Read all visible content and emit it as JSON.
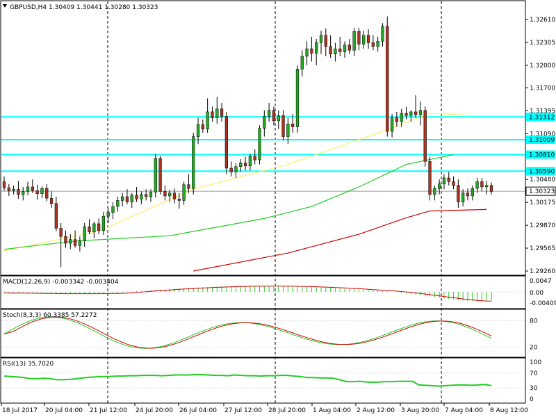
{
  "chart_data": {
    "type": "candlestick",
    "header": {
      "symbol": "GBPUSD,H4",
      "ohlc": [
        "1.30409",
        "1.30441",
        "1.30280",
        "1.30323"
      ]
    },
    "x_tick_labels": [
      "18 Jul 2017",
      "20 Jul 04:00",
      "21 Jul 12:00",
      "24 Jul 20:00",
      "26 Jul 04:00",
      "27 Jul 12:00",
      "28 Jul 20:00",
      "1 Aug 04:00",
      "2 Aug 12:00",
      "3 Aug 20:00",
      "7 Aug 04:00",
      "8 Aug 12:00"
    ],
    "y_ticks": [
      "1.32610",
      "1.32305",
      "1.32000",
      "1.31700",
      "1.31395",
      "1.31090",
      "1.30480",
      "1.30175",
      "1.29870",
      "1.29565",
      "1.29260"
    ],
    "ylim": [
      1.2926,
      1.3261
    ],
    "current_price": "1.30323",
    "horizontal_lines": [
      {
        "label": "1.31312",
        "value": 1.31312
      },
      {
        "label": "1.31009",
        "value": 1.31009
      },
      {
        "label": "1.30810",
        "value": 1.3081
      },
      {
        "label": "1.30590",
        "value": 1.3059
      }
    ],
    "candles": [
      {
        "o": 1.3045,
        "h": 1.3052,
        "l": 1.3033,
        "c": 1.3037
      },
      {
        "o": 1.3037,
        "h": 1.3042,
        "l": 1.3026,
        "c": 1.3033
      },
      {
        "o": 1.3033,
        "h": 1.304,
        "l": 1.3028,
        "c": 1.3035
      },
      {
        "o": 1.3035,
        "h": 1.3046,
        "l": 1.3022,
        "c": 1.3028
      },
      {
        "o": 1.3028,
        "h": 1.3038,
        "l": 1.302,
        "c": 1.3032
      },
      {
        "o": 1.3032,
        "h": 1.3045,
        "l": 1.3027,
        "c": 1.3038
      },
      {
        "o": 1.3038,
        "h": 1.3048,
        "l": 1.303,
        "c": 1.3033
      },
      {
        "o": 1.3033,
        "h": 1.3041,
        "l": 1.3021,
        "c": 1.3029
      },
      {
        "o": 1.3029,
        "h": 1.3039,
        "l": 1.3023,
        "c": 1.3036
      },
      {
        "o": 1.3036,
        "h": 1.3042,
        "l": 1.3019,
        "c": 1.3023
      },
      {
        "o": 1.3023,
        "h": 1.3032,
        "l": 1.301,
        "c": 1.3016
      },
      {
        "o": 1.3016,
        "h": 1.3025,
        "l": 1.2979,
        "c": 1.2983
      },
      {
        "o": 1.2983,
        "h": 1.299,
        "l": 1.2931,
        "c": 1.2972
      },
      {
        "o": 1.2972,
        "h": 1.298,
        "l": 1.2957,
        "c": 1.2963
      },
      {
        "o": 1.2963,
        "h": 1.2975,
        "l": 1.2955,
        "c": 1.2968
      },
      {
        "o": 1.2968,
        "h": 1.298,
        "l": 1.2957,
        "c": 1.296
      },
      {
        "o": 1.296,
        "h": 1.2972,
        "l": 1.2952,
        "c": 1.2966
      },
      {
        "o": 1.2966,
        "h": 1.299,
        "l": 1.2958,
        "c": 1.2985
      },
      {
        "o": 1.2985,
        "h": 1.2995,
        "l": 1.2975,
        "c": 1.2978
      },
      {
        "o": 1.2978,
        "h": 1.2992,
        "l": 1.297,
        "c": 1.2989
      },
      {
        "o": 1.2989,
        "h": 1.2996,
        "l": 1.2975,
        "c": 1.298
      },
      {
        "o": 1.298,
        "h": 1.3005,
        "l": 1.2974,
        "c": 1.2999
      },
      {
        "o": 1.2999,
        "h": 1.301,
        "l": 1.299,
        "c": 1.3004
      },
      {
        "o": 1.3004,
        "h": 1.3018,
        "l": 1.2995,
        "c": 1.3012
      },
      {
        "o": 1.3012,
        "h": 1.3025,
        "l": 1.3005,
        "c": 1.302
      },
      {
        "o": 1.302,
        "h": 1.303,
        "l": 1.3012,
        "c": 1.3025
      },
      {
        "o": 1.3025,
        "h": 1.3035,
        "l": 1.3015,
        "c": 1.3018
      },
      {
        "o": 1.3018,
        "h": 1.303,
        "l": 1.301,
        "c": 1.3027
      },
      {
        "o": 1.3027,
        "h": 1.3038,
        "l": 1.3018,
        "c": 1.3022
      },
      {
        "o": 1.3022,
        "h": 1.3032,
        "l": 1.3015,
        "c": 1.3028
      },
      {
        "o": 1.3028,
        "h": 1.3035,
        "l": 1.302,
        "c": 1.3025
      },
      {
        "o": 1.3025,
        "h": 1.3035,
        "l": 1.3018,
        "c": 1.3031
      },
      {
        "o": 1.3031,
        "h": 1.3082,
        "l": 1.3024,
        "c": 1.3076
      },
      {
        "o": 1.3076,
        "h": 1.3079,
        "l": 1.3028,
        "c": 1.3032
      },
      {
        "o": 1.3032,
        "h": 1.304,
        "l": 1.302,
        "c": 1.3026
      },
      {
        "o": 1.3026,
        "h": 1.3034,
        "l": 1.3018,
        "c": 1.303
      },
      {
        "o": 1.303,
        "h": 1.3036,
        "l": 1.3016,
        "c": 1.3022
      },
      {
        "o": 1.3022,
        "h": 1.303,
        "l": 1.3009,
        "c": 1.302
      },
      {
        "o": 1.302,
        "h": 1.3045,
        "l": 1.3014,
        "c": 1.3041
      },
      {
        "o": 1.3041,
        "h": 1.3055,
        "l": 1.303,
        "c": 1.3036
      },
      {
        "o": 1.3036,
        "h": 1.311,
        "l": 1.3028,
        "c": 1.3105
      },
      {
        "o": 1.3105,
        "h": 1.313,
        "l": 1.3095,
        "c": 1.3121
      },
      {
        "o": 1.3121,
        "h": 1.3128,
        "l": 1.311,
        "c": 1.3115
      },
      {
        "o": 1.3115,
        "h": 1.3156,
        "l": 1.311,
        "c": 1.3138
      },
      {
        "o": 1.3138,
        "h": 1.3145,
        "l": 1.3125,
        "c": 1.313
      },
      {
        "o": 1.313,
        "h": 1.3158,
        "l": 1.3122,
        "c": 1.3142
      },
      {
        "o": 1.3142,
        "h": 1.315,
        "l": 1.3125,
        "c": 1.3132
      },
      {
        "o": 1.3132,
        "h": 1.3138,
        "l": 1.3055,
        "c": 1.3063
      },
      {
        "o": 1.3063,
        "h": 1.3072,
        "l": 1.3052,
        "c": 1.3058
      },
      {
        "o": 1.3058,
        "h": 1.307,
        "l": 1.305,
        "c": 1.3065
      },
      {
        "o": 1.3065,
        "h": 1.3075,
        "l": 1.3058,
        "c": 1.307
      },
      {
        "o": 1.307,
        "h": 1.3078,
        "l": 1.306,
        "c": 1.3066
      },
      {
        "o": 1.3066,
        "h": 1.3082,
        "l": 1.306,
        "c": 1.3079
      },
      {
        "o": 1.3079,
        "h": 1.3088,
        "l": 1.3068,
        "c": 1.3074
      },
      {
        "o": 1.3074,
        "h": 1.312,
        "l": 1.3068,
        "c": 1.3116
      },
      {
        "o": 1.3116,
        "h": 1.314,
        "l": 1.3105,
        "c": 1.3132
      },
      {
        "o": 1.3132,
        "h": 1.315,
        "l": 1.3125,
        "c": 1.314
      },
      {
        "o": 1.314,
        "h": 1.3145,
        "l": 1.312,
        "c": 1.3126
      },
      {
        "o": 1.3126,
        "h": 1.314,
        "l": 1.3115,
        "c": 1.3133
      },
      {
        "o": 1.3133,
        "h": 1.314,
        "l": 1.31,
        "c": 1.3105
      },
      {
        "o": 1.3105,
        "h": 1.313,
        "l": 1.3095,
        "c": 1.3122
      },
      {
        "o": 1.3122,
        "h": 1.3135,
        "l": 1.311,
        "c": 1.3118
      },
      {
        "o": 1.3118,
        "h": 1.32,
        "l": 1.311,
        "c": 1.3195
      },
      {
        "o": 1.3195,
        "h": 1.322,
        "l": 1.3185,
        "c": 1.3212
      },
      {
        "o": 1.3212,
        "h": 1.3232,
        "l": 1.32,
        "c": 1.3222
      },
      {
        "o": 1.3222,
        "h": 1.3238,
        "l": 1.3205,
        "c": 1.3216
      },
      {
        "o": 1.3216,
        "h": 1.3235,
        "l": 1.32,
        "c": 1.323
      },
      {
        "o": 1.323,
        "h": 1.3246,
        "l": 1.3215,
        "c": 1.324
      },
      {
        "o": 1.324,
        "h": 1.3249,
        "l": 1.3212,
        "c": 1.3225
      },
      {
        "o": 1.3225,
        "h": 1.324,
        "l": 1.321,
        "c": 1.3215
      },
      {
        "o": 1.3215,
        "h": 1.323,
        "l": 1.3205,
        "c": 1.3222
      },
      {
        "o": 1.3222,
        "h": 1.3238,
        "l": 1.3212,
        "c": 1.3218
      },
      {
        "o": 1.3218,
        "h": 1.3232,
        "l": 1.321,
        "c": 1.3227
      },
      {
        "o": 1.3227,
        "h": 1.3235,
        "l": 1.3215,
        "c": 1.322
      },
      {
        "o": 1.322,
        "h": 1.325,
        "l": 1.3212,
        "c": 1.3245
      },
      {
        "o": 1.3245,
        "h": 1.325,
        "l": 1.322,
        "c": 1.3228
      },
      {
        "o": 1.3228,
        "h": 1.3246,
        "l": 1.3222,
        "c": 1.324
      },
      {
        "o": 1.324,
        "h": 1.3248,
        "l": 1.3222,
        "c": 1.323
      },
      {
        "o": 1.323,
        "h": 1.324,
        "l": 1.322,
        "c": 1.3225
      },
      {
        "o": 1.3225,
        "h": 1.3238,
        "l": 1.3218,
        "c": 1.3232
      },
      {
        "o": 1.3232,
        "h": 1.3256,
        "l": 1.3225,
        "c": 1.3252
      },
      {
        "o": 1.3252,
        "h": 1.3265,
        "l": 1.3105,
        "c": 1.3112
      },
      {
        "o": 1.3112,
        "h": 1.3135,
        "l": 1.3104,
        "c": 1.313
      },
      {
        "o": 1.313,
        "h": 1.3138,
        "l": 1.3118,
        "c": 1.3125
      },
      {
        "o": 1.3125,
        "h": 1.3142,
        "l": 1.3118,
        "c": 1.3136
      },
      {
        "o": 1.3136,
        "h": 1.3145,
        "l": 1.3128,
        "c": 1.3133
      },
      {
        "o": 1.3133,
        "h": 1.314,
        "l": 1.3125,
        "c": 1.3138
      },
      {
        "o": 1.3138,
        "h": 1.316,
        "l": 1.313,
        "c": 1.3134
      },
      {
        "o": 1.3134,
        "h": 1.3152,
        "l": 1.312,
        "c": 1.314
      },
      {
        "o": 1.314,
        "h": 1.3145,
        "l": 1.3065,
        "c": 1.3072
      },
      {
        "o": 1.3072,
        "h": 1.3078,
        "l": 1.302,
        "c": 1.3028
      },
      {
        "o": 1.3028,
        "h": 1.304,
        "l": 1.302,
        "c": 1.3036
      },
      {
        "o": 1.3036,
        "h": 1.3048,
        "l": 1.3028,
        "c": 1.3042
      },
      {
        "o": 1.3042,
        "h": 1.3055,
        "l": 1.3035,
        "c": 1.305
      },
      {
        "o": 1.305,
        "h": 1.3058,
        "l": 1.304,
        "c": 1.3045
      },
      {
        "o": 1.3045,
        "h": 1.3052,
        "l": 1.3035,
        "c": 1.304
      },
      {
        "o": 1.304,
        "h": 1.3048,
        "l": 1.301,
        "c": 1.3018
      },
      {
        "o": 1.3018,
        "h": 1.3035,
        "l": 1.3012,
        "c": 1.303
      },
      {
        "o": 1.303,
        "h": 1.3036,
        "l": 1.302,
        "c": 1.3026
      },
      {
        "o": 1.3026,
        "h": 1.304,
        "l": 1.302,
        "c": 1.3036
      },
      {
        "o": 1.3036,
        "h": 1.305,
        "l": 1.303,
        "c": 1.3045
      },
      {
        "o": 1.3045,
        "h": 1.305,
        "l": 1.3032,
        "c": 1.3038
      },
      {
        "o": 1.3038,
        "h": 1.3046,
        "l": 1.3028,
        "c": 1.304
      },
      {
        "o": 1.304,
        "h": 1.3044,
        "l": 1.3028,
        "c": 1.3032
      }
    ],
    "moving_averages": [
      {
        "color": "#ffee66",
        "points": [
          [
            0,
            1.2953
          ],
          [
            20,
            1.2979
          ],
          [
            40,
            1.3035
          ],
          [
            60,
            1.3068
          ],
          [
            80,
            1.3112
          ],
          [
            90,
            1.3136
          ],
          [
            100,
            1.3133
          ]
        ]
      },
      {
        "color": "#22cc22",
        "points": [
          [
            0,
            1.2955
          ],
          [
            15,
            1.2966
          ],
          [
            35,
            1.2973
          ],
          [
            55,
            1.2996
          ],
          [
            65,
            1.3012
          ],
          [
            75,
            1.3038
          ],
          [
            85,
            1.3068
          ],
          [
            95,
            1.3081
          ]
        ]
      },
      {
        "color": "#cc0000",
        "points": [
          [
            40,
            1.2926
          ],
          [
            60,
            1.295
          ],
          [
            75,
            1.2975
          ],
          [
            85,
            1.2997
          ],
          [
            90,
            1.3006
          ],
          [
            102,
            1.3008
          ]
        ]
      }
    ],
    "macd": {
      "label": "MACD(12,26,9) -0.003342 -0.003404",
      "ticks": [
        "0.0047",
        "0.00",
        "-0.004093"
      ]
    },
    "stoch": {
      "label": "Stoch(8,3,3) 60.3385 57.2272",
      "ticks": [
        "80",
        "20"
      ]
    },
    "rsi": {
      "label": "RSI(13) 35.7020",
      "ticks": [
        "100",
        "70",
        "30",
        "0"
      ],
      "values": [
        62,
        61,
        60,
        58,
        55,
        55,
        56,
        55,
        52,
        52,
        53,
        55,
        57,
        59,
        60,
        61,
        61,
        62,
        62,
        63,
        63,
        64,
        64,
        64,
        63,
        64,
        65,
        65,
        65,
        66,
        66,
        65,
        64,
        64,
        63,
        65,
        64,
        63,
        63,
        62,
        63,
        63,
        64,
        64,
        62,
        61,
        58,
        58,
        57,
        57,
        56,
        52,
        47,
        47,
        48,
        46,
        45,
        46,
        47,
        47,
        48,
        48,
        48,
        38,
        37,
        36,
        35,
        36,
        37,
        38,
        38,
        37,
        38,
        39,
        36
      ]
    },
    "colors": {
      "bull": "#22aa22",
      "bear": "#aa3322",
      "level_line": "#00ffff",
      "session": "#000000",
      "macd_hist": "#22cc22",
      "macd_signal": "#cc0000",
      "stoch_main": "#22cc22",
      "stoch_signal": "#cc0000",
      "rsi": "#22cc22"
    }
  }
}
